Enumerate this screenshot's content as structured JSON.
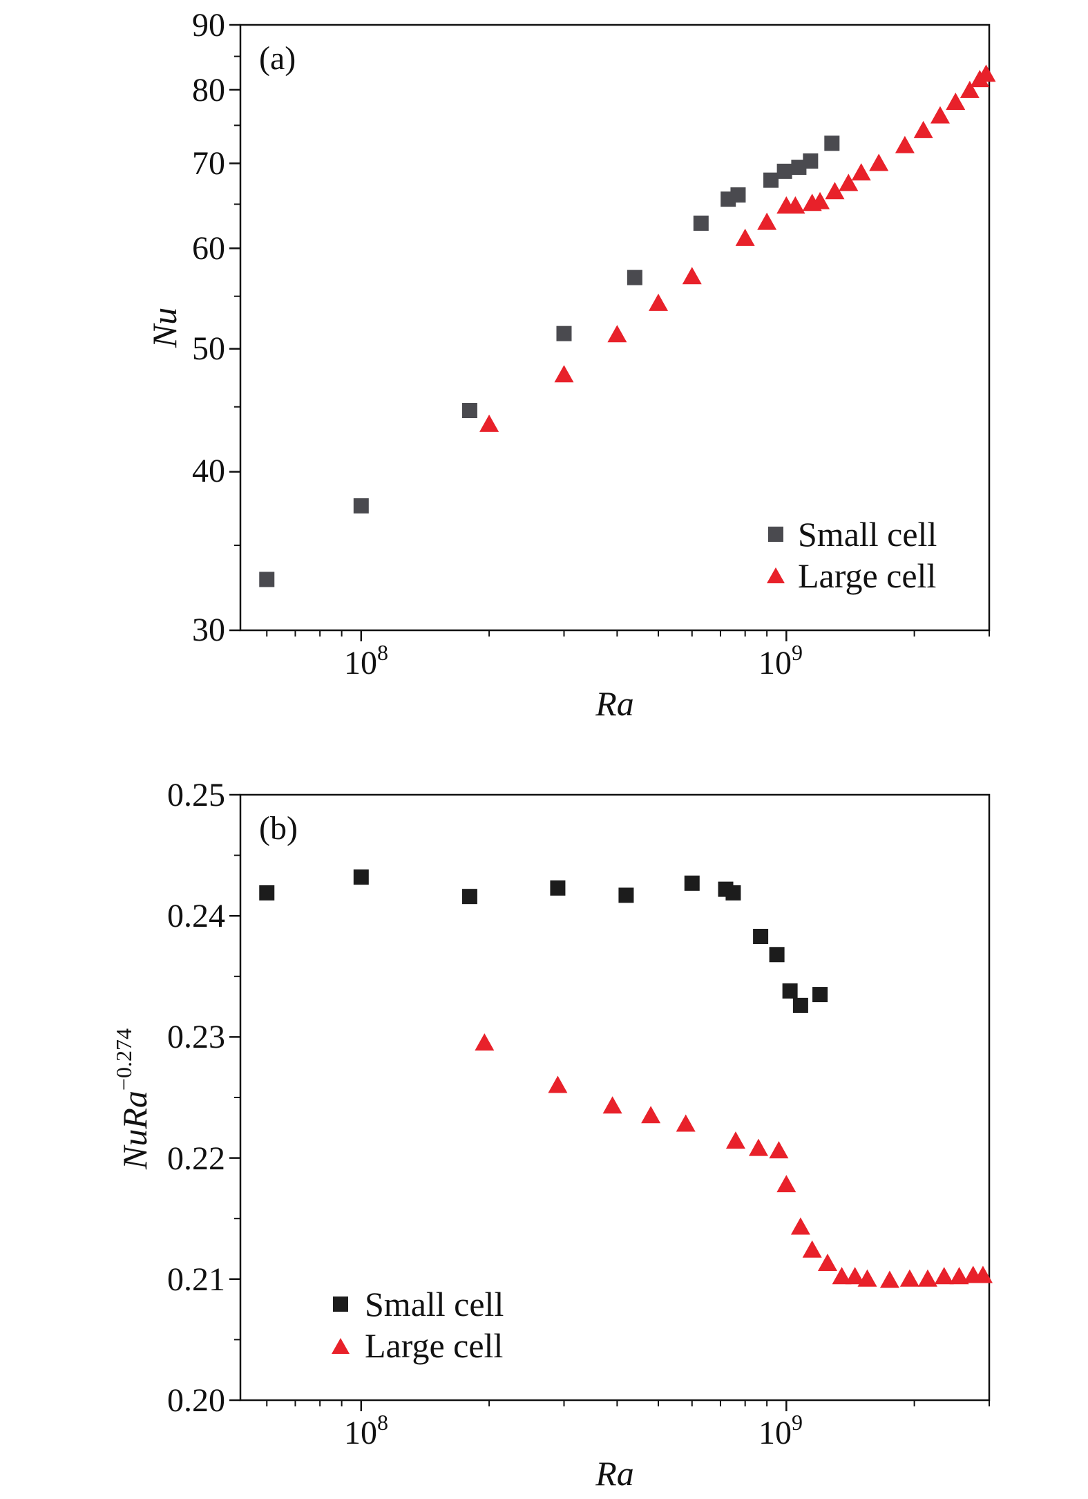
{
  "colors": {
    "small_cell_a": "#4a4a4f",
    "small_cell_b": "#1c1c1c",
    "large_cell": "#e8212a",
    "axis": "#111111"
  },
  "chart_data": [
    {
      "type": "scatter",
      "panel_label": "(a)",
      "xlabel": "Ra",
      "ylabel": "Nu",
      "xscale": "log",
      "yscale": "log",
      "xlim": [
        52000000,
        3000000000
      ],
      "ylim": [
        30,
        90
      ],
      "x_ticks": [
        {
          "value": 100000000,
          "base": "10",
          "exp": "8"
        },
        {
          "value": 1000000000,
          "base": "10",
          "exp": "9"
        }
      ],
      "y_ticks": [
        {
          "value": 30,
          "label": "30"
        },
        {
          "value": 40,
          "label": "40"
        },
        {
          "value": 50,
          "label": "50"
        },
        {
          "value": 60,
          "label": "60"
        },
        {
          "value": 70,
          "label": "70"
        },
        {
          "value": 80,
          "label": "80"
        },
        {
          "value": 90,
          "label": "90"
        }
      ],
      "y_minor_ticks": [
        35,
        45,
        55,
        65,
        75,
        85
      ],
      "legend": {
        "position": "bottom-right",
        "entries": [
          {
            "label": "Small cell",
            "marker": "square"
          },
          {
            "label": "Large cell",
            "marker": "triangle"
          }
        ]
      },
      "series": [
        {
          "name": "Small cell",
          "marker": "square",
          "color": "#4a4a4f",
          "points": [
            [
              60000000,
              32.9
            ],
            [
              100000000,
              37.6
            ],
            [
              180000000,
              44.7
            ],
            [
              300000000,
              51.4
            ],
            [
              440000000,
              56.9
            ],
            [
              630000000,
              62.8
            ],
            [
              730000000,
              65.6
            ],
            [
              770000000,
              66.1
            ],
            [
              920000000,
              67.9
            ],
            [
              990000000,
              69.0
            ],
            [
              1070000000,
              69.5
            ],
            [
              1140000000,
              70.3
            ],
            [
              1280000000,
              72.6
            ]
          ]
        },
        {
          "name": "Large cell",
          "marker": "triangle",
          "color": "#e8212a",
          "points": [
            [
              200000000,
              43.6
            ],
            [
              300000000,
              47.7
            ],
            [
              400000000,
              51.3
            ],
            [
              500000000,
              54.3
            ],
            [
              600000000,
              57.0
            ],
            [
              800000000,
              61.1
            ],
            [
              900000000,
              62.9
            ],
            [
              1000000000,
              64.8
            ],
            [
              1050000000,
              64.8
            ],
            [
              1150000000,
              65.1
            ],
            [
              1200000000,
              65.3
            ],
            [
              1300000000,
              66.5
            ],
            [
              1400000000,
              67.5
            ],
            [
              1500000000,
              68.8
            ],
            [
              1650000000,
              70.0
            ],
            [
              1900000000,
              72.3
            ],
            [
              2100000000,
              74.3
            ],
            [
              2300000000,
              76.3
            ],
            [
              2500000000,
              78.2
            ],
            [
              2700000000,
              79.9
            ],
            [
              2850000000,
              81.5
            ],
            [
              2950000000,
              82.3
            ]
          ]
        }
      ]
    },
    {
      "type": "scatter",
      "panel_label": "(b)",
      "xlabel": "Ra",
      "ylabel_base": "NuRa",
      "ylabel_exp": "−0.274",
      "xscale": "log",
      "yscale": "linear",
      "xlim": [
        52000000,
        3000000000
      ],
      "ylim": [
        0.2,
        0.25
      ],
      "x_ticks": [
        {
          "value": 100000000,
          "base": "10",
          "exp": "8"
        },
        {
          "value": 1000000000,
          "base": "10",
          "exp": "9"
        }
      ],
      "y_ticks": [
        {
          "value": 0.2,
          "label": "0.20"
        },
        {
          "value": 0.21,
          "label": "0.21"
        },
        {
          "value": 0.22,
          "label": "0.22"
        },
        {
          "value": 0.23,
          "label": "0.23"
        },
        {
          "value": 0.24,
          "label": "0.24"
        },
        {
          "value": 0.25,
          "label": "0.25"
        }
      ],
      "y_minor_ticks": [
        0.205,
        0.215,
        0.225,
        0.235,
        0.245
      ],
      "legend": {
        "position": "bottom-left",
        "entries": [
          {
            "label": "Small cell",
            "marker": "square"
          },
          {
            "label": "Large cell",
            "marker": "triangle"
          }
        ]
      },
      "series": [
        {
          "name": "Small cell",
          "marker": "square",
          "color": "#1c1c1c",
          "points": [
            [
              60000000,
              0.2419
            ],
            [
              100000000,
              0.2432
            ],
            [
              180000000,
              0.2416
            ],
            [
              290000000,
              0.2423
            ],
            [
              420000000,
              0.2417
            ],
            [
              600000000,
              0.2427
            ],
            [
              720000000,
              0.2422
            ],
            [
              750000000,
              0.2419
            ],
            [
              870000000,
              0.2383
            ],
            [
              950000000,
              0.2368
            ],
            [
              1020000000,
              0.2338
            ],
            [
              1080000000,
              0.2326
            ],
            [
              1200000000,
              0.2335
            ]
          ]
        },
        {
          "name": "Large cell",
          "marker": "triangle",
          "color": "#e8212a",
          "points": [
            [
              195000000,
              0.2295
            ],
            [
              290000000,
              0.226
            ],
            [
              390000000,
              0.2243
            ],
            [
              480000000,
              0.2235
            ],
            [
              580000000,
              0.2228
            ],
            [
              760000000,
              0.2214
            ],
            [
              860000000,
              0.2208
            ],
            [
              960000000,
              0.2206
            ],
            [
              1000000000,
              0.2178
            ],
            [
              1080000000,
              0.2143
            ],
            [
              1150000000,
              0.2124
            ],
            [
              1250000000,
              0.2113
            ],
            [
              1350000000,
              0.2102
            ],
            [
              1450000000,
              0.2102
            ],
            [
              1550000000,
              0.21
            ],
            [
              1750000000,
              0.2099
            ],
            [
              1950000000,
              0.21
            ],
            [
              2150000000,
              0.21
            ],
            [
              2350000000,
              0.2102
            ],
            [
              2550000000,
              0.2102
            ],
            [
              2750000000,
              0.2103
            ],
            [
              2900000000,
              0.2103
            ]
          ]
        }
      ]
    }
  ]
}
